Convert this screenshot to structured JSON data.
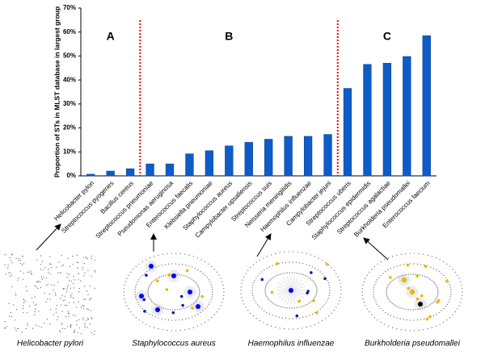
{
  "chart_data": {
    "type": "bar",
    "y_label": "Proportion of STs in MLST database in largest group",
    "categories": [
      "Helicobacter pylori",
      "Streptococcus pyogenes",
      "Bacillus cereus",
      "Streptococcus pneumoniae",
      "Pseudomonas aeruginosa",
      "Enterococcus faecalis",
      "Klebsiella pneumoniae",
      "Staphylococcus aureus",
      "Campylobacter upsaliensis",
      "Streptococcus suis",
      "Neisseria meningitidis",
      "Haemophilus influenzae",
      "Campylobacter jejuni",
      "Streptococcus uberis",
      "Staphylococcus epidermidis",
      "Streptococcus agalactiae",
      "Burkholderia pseudomallei",
      "Enterococcus faecium"
    ],
    "values": [
      0.7,
      2.0,
      3.0,
      5.0,
      5.0,
      9.2,
      10.5,
      12.5,
      14.0,
      15.3,
      16.5,
      16.5,
      17.3,
      36.5,
      46.5,
      47.0,
      49.8,
      58.5
    ],
    "color": "#0d5cc8",
    "ylim": [
      0,
      70
    ],
    "yticks": [
      {
        "value": 0,
        "label": "0%"
      },
      {
        "value": 10,
        "label": "10%"
      },
      {
        "value": 20,
        "label": "20%"
      },
      {
        "value": 30,
        "label": "30%"
      },
      {
        "value": 40,
        "label": "40%"
      },
      {
        "value": 50,
        "label": "50%"
      },
      {
        "value": 60,
        "label": "60%"
      },
      {
        "value": 70,
        "label": "70%"
      }
    ],
    "grid": false,
    "groups": [
      "A",
      "B",
      "C"
    ]
  },
  "networks": [
    {
      "caption": "Helicobacter pylori"
    },
    {
      "caption": "Staphylococcus aureus"
    },
    {
      "caption": "Haemophilus influenzae"
    },
    {
      "caption": "Burkholderia pseudomallei"
    }
  ]
}
